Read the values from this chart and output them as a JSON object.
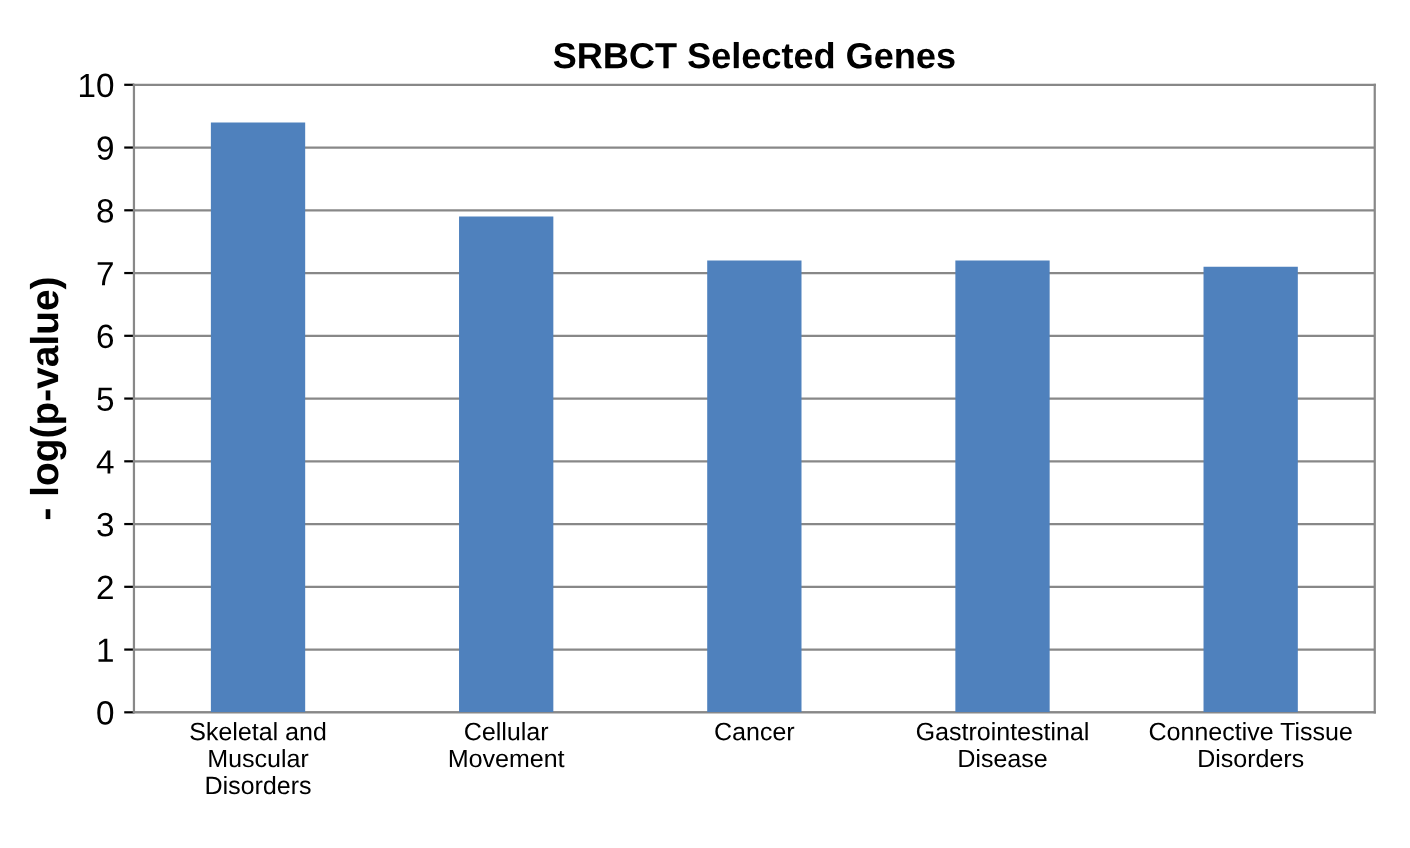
{
  "chart_data": {
    "type": "bar",
    "title": "SRBCT Selected Genes",
    "ylabel": "- log(p-value)",
    "categories": [
      "Skeletal and\nMuscular\nDisorders",
      "Cellular\nMovement",
      "Cancer",
      "Gastrointestinal\nDisease",
      "Connective Tissue\nDisorders"
    ],
    "values": [
      9.4,
      7.9,
      7.2,
      7.2,
      7.1
    ],
    "color": "#4f81bd",
    "ylim": [
      0,
      10
    ],
    "yticks": [
      0,
      1,
      2,
      3,
      4,
      5,
      6,
      7,
      8,
      9,
      10
    ],
    "grid": "y",
    "legend": false
  }
}
